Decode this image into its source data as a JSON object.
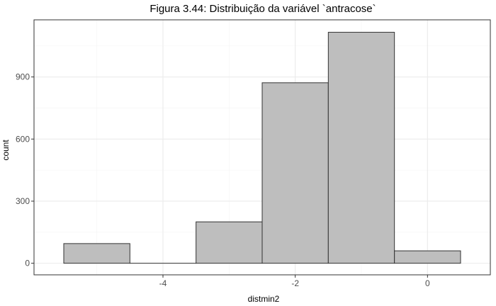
{
  "chart_data": {
    "type": "bar",
    "title": "Figura 3.44: Distribuição da variável `antracose`",
    "xlabel": "distmin2",
    "ylabel": "count",
    "bins": [
      {
        "x0": -5.5,
        "x1": -4.5,
        "count": 95
      },
      {
        "x0": -4.5,
        "x1": -3.5,
        "count": 0
      },
      {
        "x0": -3.5,
        "x1": -2.5,
        "count": 200
      },
      {
        "x0": -2.5,
        "x1": -1.5,
        "count": 872
      },
      {
        "x0": -1.5,
        "x1": -0.5,
        "count": 1116
      },
      {
        "x0": -0.5,
        "x1": 0.5,
        "count": 60
      }
    ],
    "xlim": [
      -5.95,
      0.95
    ],
    "ylim": [
      -56,
      1176
    ],
    "x_ticks": [
      -4,
      -2,
      0
    ],
    "x_tick_labels": [
      "-4",
      "-2",
      "0"
    ],
    "x_minor_ticks": [
      -5,
      -3,
      -1
    ],
    "y_ticks": [
      0,
      300,
      600,
      900
    ],
    "y_tick_labels": [
      "0",
      "300",
      "600",
      "900"
    ],
    "y_minor_ticks": [
      150,
      450,
      750,
      1050
    ],
    "grid": true,
    "colors": {
      "bar_fill": "#bebebe",
      "bar_stroke": "#333333",
      "grid_major": "#ebebeb",
      "grid_minor": "#f4f4f4",
      "panel_border": "#333333"
    }
  }
}
